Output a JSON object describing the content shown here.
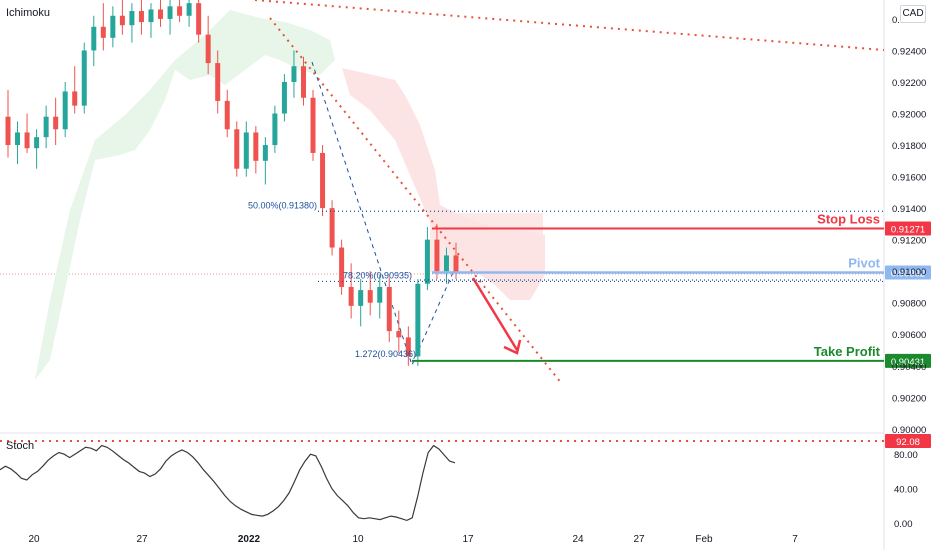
{
  "app": {
    "indicator_label": "Ichimoku",
    "currency": "CAD",
    "stoch_label": "Stoch"
  },
  "colors": {
    "bull": "#26a69a",
    "bear": "#ef5350",
    "cloud_green": "#e8f5e9",
    "cloud_red": "#fde4e4",
    "stop": "#f23645",
    "pivot": "#90b8f0",
    "take": "#1b8a2e",
    "fib": "#1e4f9c",
    "trend": "#e8503a"
  },
  "chart_data": [
    {
      "type": "candlestick",
      "title": "Ichimoku",
      "currency": "CAD",
      "y_ticks": [
        "0.92600",
        "0.92400",
        "0.92200",
        "0.92000",
        "0.91800",
        "0.91600",
        "0.91400",
        "0.91200",
        "0.91000",
        "0.90800",
        "0.90600",
        "0.90400",
        "0.90200",
        "0.90000"
      ],
      "ylim": [
        0.8998,
        0.9272
      ],
      "x_ticks": [
        "20",
        "27",
        "2022",
        "10",
        "17",
        "24",
        "27",
        "Feb",
        "7"
      ],
      "levels": [
        {
          "label": "Stop Loss",
          "value": 0.91271,
          "price_tag": "0.91271"
        },
        {
          "label": "Pivot",
          "value": 0.90992,
          "price_tag": "0.90992"
        },
        {
          "label": "Take Profit",
          "value": 0.90431,
          "price_tag": "0.90431"
        }
      ],
      "fib_annotations": [
        {
          "text": "50.00%(0.91380)",
          "value": 0.9138
        },
        {
          "text": "78.20%(0.90935)",
          "value": 0.90935
        },
        {
          "text": "1.272(0.90436)",
          "value": 0.90436
        }
      ],
      "series": [
        {
          "name": "price",
          "ohlc": [
            [
              0.9198,
              0.9215,
              0.9172,
              0.918
            ],
            [
              0.918,
              0.9195,
              0.9168,
              0.9188
            ],
            [
              0.9188,
              0.92,
              0.9175,
              0.9178
            ],
            [
              0.9178,
              0.919,
              0.9165,
              0.9185
            ],
            [
              0.9185,
              0.9205,
              0.9178,
              0.9198
            ],
            [
              0.9198,
              0.921,
              0.918,
              0.919
            ],
            [
              0.919,
              0.922,
              0.9185,
              0.9214
            ],
            [
              0.9214,
              0.923,
              0.92,
              0.9205
            ],
            [
              0.9205,
              0.9245,
              0.92,
              0.924
            ],
            [
              0.924,
              0.9262,
              0.923,
              0.9255
            ],
            [
              0.9255,
              0.927,
              0.924,
              0.9248
            ],
            [
              0.9248,
              0.9268,
              0.9242,
              0.9262
            ],
            [
              0.9262,
              0.9272,
              0.925,
              0.9256
            ],
            [
              0.9256,
              0.927,
              0.9245,
              0.9265
            ],
            [
              0.9265,
              0.9272,
              0.925,
              0.9258
            ],
            [
              0.9258,
              0.927,
              0.9248,
              0.9266
            ],
            [
              0.9266,
              0.9272,
              0.9255,
              0.926
            ],
            [
              0.926,
              0.9272,
              0.925,
              0.9268
            ],
            [
              0.9268,
              0.9272,
              0.9258,
              0.9262
            ],
            [
              0.9262,
              0.9272,
              0.9255,
              0.927
            ],
            [
              0.927,
              0.9272,
              0.9245,
              0.925
            ],
            [
              0.925,
              0.9262,
              0.9225,
              0.9232
            ],
            [
              0.9232,
              0.924,
              0.92,
              0.9208
            ],
            [
              0.9208,
              0.9215,
              0.9185,
              0.919
            ],
            [
              0.919,
              0.9195,
              0.916,
              0.9165
            ],
            [
              0.9165,
              0.9195,
              0.916,
              0.9188
            ],
            [
              0.9188,
              0.9192,
              0.9162,
              0.917
            ],
            [
              0.917,
              0.9185,
              0.9155,
              0.918
            ],
            [
              0.918,
              0.9205,
              0.9175,
              0.92
            ],
            [
              0.92,
              0.9225,
              0.9195,
              0.922
            ],
            [
              0.922,
              0.924,
              0.921,
              0.923
            ],
            [
              0.923,
              0.9236,
              0.9205,
              0.921
            ],
            [
              0.921,
              0.9215,
              0.917,
              0.9175
            ],
            [
              0.9175,
              0.918,
              0.9135,
              0.914
            ],
            [
              0.914,
              0.9145,
              0.911,
              0.9115
            ],
            [
              0.9115,
              0.912,
              0.9085,
              0.909
            ],
            [
              0.909,
              0.9105,
              0.907,
              0.9078
            ],
            [
              0.9078,
              0.9095,
              0.9065,
              0.9088
            ],
            [
              0.9088,
              0.91,
              0.9072,
              0.908
            ],
            [
              0.908,
              0.9098,
              0.907,
              0.909
            ],
            [
              0.909,
              0.9096,
              0.9055,
              0.9062
            ],
            [
              0.9062,
              0.9075,
              0.9048,
              0.9058
            ],
            [
              0.9058,
              0.9065,
              0.904,
              0.9046
            ],
            [
              0.9046,
              0.9095,
              0.904,
              0.9092
            ],
            [
              0.9092,
              0.9128,
              0.9088,
              0.912
            ],
            [
              0.912,
              0.913,
              0.9095,
              0.91
            ],
            [
              0.91,
              0.9115,
              0.9092,
              0.911
            ],
            [
              0.911,
              0.9118,
              0.9095,
              0.9099
            ]
          ]
        },
        {
          "name": "stoch",
          "ylim": [
            0,
            100
          ],
          "y_ticks": [
            "80.00",
            "40.00",
            "0.00"
          ],
          "overbought": 92.08,
          "overbought_tag": "92.08",
          "values": [
            62,
            66,
            63,
            58,
            52,
            50,
            56,
            60,
            66,
            73,
            78,
            82,
            80,
            76,
            80,
            84,
            88,
            87,
            84,
            90,
            88,
            84,
            79,
            74,
            70,
            65,
            60,
            58,
            54,
            57,
            63,
            72,
            78,
            82,
            85,
            82,
            77,
            70,
            62,
            55,
            48,
            40,
            32,
            25,
            20,
            16,
            13,
            10,
            9,
            8,
            10,
            14,
            19,
            26,
            35,
            48,
            62,
            72,
            80,
            78,
            66,
            52,
            40,
            32,
            26,
            20,
            12,
            6,
            5,
            6,
            5,
            4,
            6,
            8,
            7,
            5,
            3,
            6,
            30,
            58,
            82,
            90,
            86,
            79,
            72,
            70
          ]
        }
      ]
    }
  ]
}
